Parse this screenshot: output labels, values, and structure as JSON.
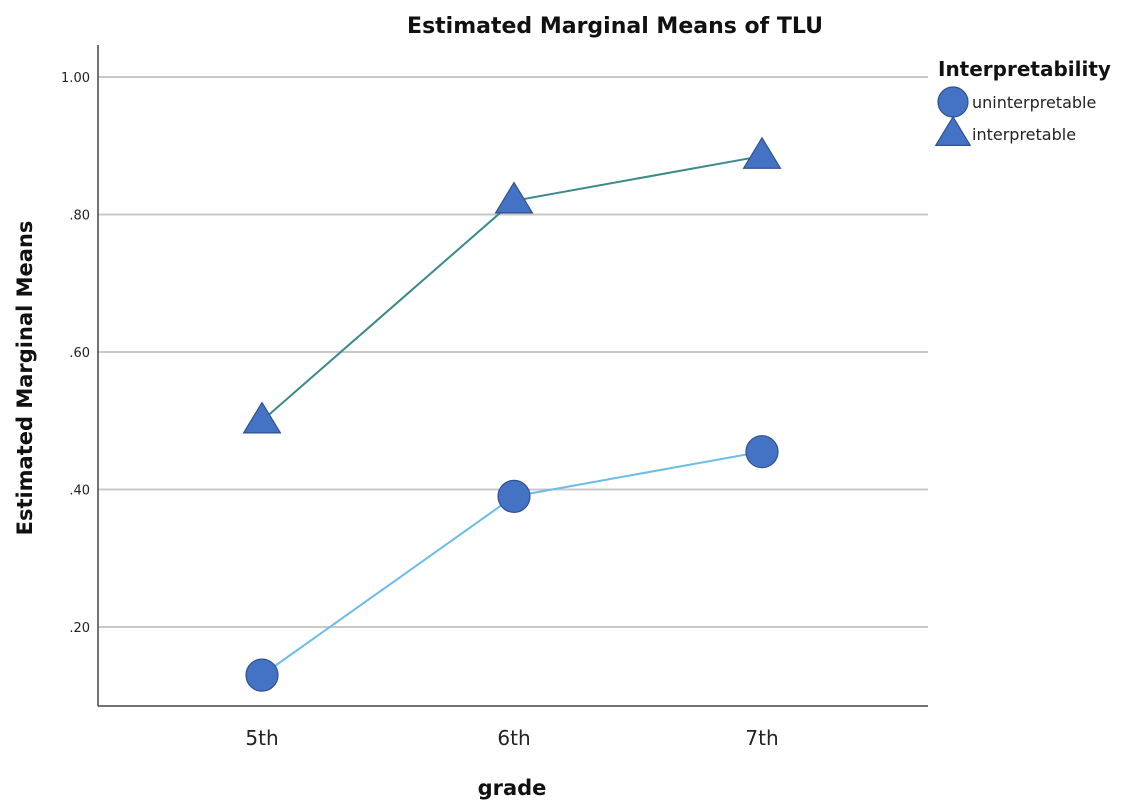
{
  "chart_data": {
    "type": "line",
    "title": "Estimated Marginal Means of TLU",
    "xlabel": "grade",
    "ylabel": "Estimated Marginal Means",
    "categories": [
      "5th",
      "6th",
      "7th"
    ],
    "yticks": [
      ".20",
      ".40",
      ".60",
      ".80",
      "1.00"
    ],
    "ylim": [
      0.07,
      1.05
    ],
    "grid": true,
    "legend": {
      "title": "Interpretability",
      "placement": "top-right"
    },
    "series": [
      {
        "name": "uninterpretable",
        "values": [
          0.13,
          0.39,
          0.455
        ],
        "marker": "circle",
        "line_color": "#6bbde8",
        "marker_color": "#4472c4"
      },
      {
        "name": "interpretable",
        "values": [
          0.5,
          0.82,
          0.885
        ],
        "marker": "triangle",
        "line_color": "#3a8a8a",
        "marker_color": "#4472c4"
      }
    ]
  }
}
